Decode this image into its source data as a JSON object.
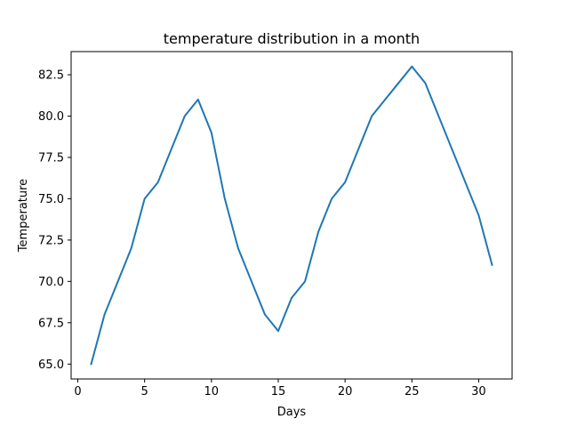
{
  "chart_data": {
    "type": "line",
    "title": "temperature distribution in a month",
    "xlabel": "Days",
    "ylabel": "Temperature",
    "xlim": [
      -0.5,
      32.5
    ],
    "ylim": [
      64.1,
      83.9
    ],
    "xticks": [
      0,
      5,
      10,
      15,
      20,
      25,
      30
    ],
    "yticks": [
      65.0,
      67.5,
      70.0,
      72.5,
      75.0,
      77.5,
      80.0,
      82.5
    ],
    "xtick_labels": [
      "0",
      "5",
      "10",
      "15",
      "20",
      "25",
      "30"
    ],
    "ytick_labels": [
      "65.0",
      "67.5",
      "70.0",
      "72.5",
      "75.0",
      "77.5",
      "80.0",
      "82.5"
    ],
    "grid": false,
    "series": [
      {
        "color": "#1f77b4",
        "x": [
          1,
          2,
          3,
          4,
          5,
          6,
          7,
          8,
          9,
          10,
          11,
          12,
          13,
          14,
          15,
          16,
          17,
          18,
          19,
          20,
          21,
          22,
          23,
          24,
          25,
          26,
          27,
          28,
          29,
          30,
          31
        ],
        "values": [
          65,
          68,
          70,
          72,
          75,
          76,
          78,
          80,
          81,
          79,
          75,
          72,
          70,
          68,
          67,
          69,
          70,
          73,
          75,
          76,
          78,
          80,
          81,
          82,
          83,
          82,
          80,
          78,
          76,
          74,
          71
        ]
      }
    ]
  }
}
